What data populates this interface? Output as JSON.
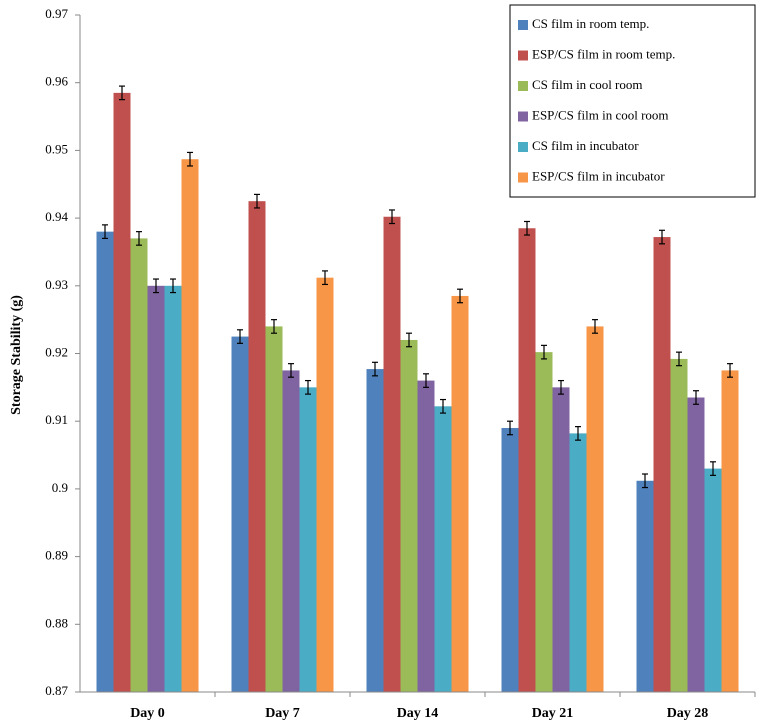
{
  "chart_data": {
    "type": "bar",
    "y_label": "Storage Stability (g)",
    "categories": [
      "Day 0",
      "Day 7",
      "Day 14",
      "Day 21",
      "Day 28"
    ],
    "series": [
      {
        "name": "CS film in room temp.",
        "color": "#4f81bd",
        "values": [
          0.938,
          0.9225,
          0.9177,
          0.909,
          0.9012
        ],
        "errors": [
          0.001,
          0.001,
          0.001,
          0.001,
          0.001
        ]
      },
      {
        "name": "ESP/CS film in room temp.",
        "color": "#c0504d",
        "values": [
          0.9585,
          0.9425,
          0.9402,
          0.9385,
          0.9372
        ],
        "errors": [
          0.001,
          0.001,
          0.001,
          0.001,
          0.001
        ]
      },
      {
        "name": "CS film in cool room",
        "color": "#9bbb59",
        "values": [
          0.937,
          0.924,
          0.922,
          0.9202,
          0.9192
        ],
        "errors": [
          0.001,
          0.001,
          0.001,
          0.001,
          0.001
        ]
      },
      {
        "name": "ESP/CS film in cool room",
        "color": "#8064a2",
        "values": [
          0.93,
          0.9175,
          0.916,
          0.915,
          0.9135
        ],
        "errors": [
          0.001,
          0.001,
          0.001,
          0.001,
          0.001
        ]
      },
      {
        "name": "CS film in incubator",
        "color": "#4bacc6",
        "values": [
          0.93,
          0.915,
          0.9122,
          0.9082,
          0.903
        ],
        "errors": [
          0.001,
          0.001,
          0.001,
          0.001,
          0.001
        ]
      },
      {
        "name": "ESP/CS film in incubator",
        "color": "#f79646",
        "values": [
          0.9487,
          0.9312,
          0.9285,
          0.924,
          0.9175
        ],
        "errors": [
          0.001,
          0.001,
          0.001,
          0.001,
          0.001
        ]
      }
    ],
    "ylim": [
      0.87,
      0.97
    ],
    "yticks": [
      0.87,
      0.88,
      0.89,
      0.9,
      0.91,
      0.92,
      0.93,
      0.94,
      0.95,
      0.96,
      0.97
    ],
    "grid": false,
    "legend": "top-right"
  }
}
